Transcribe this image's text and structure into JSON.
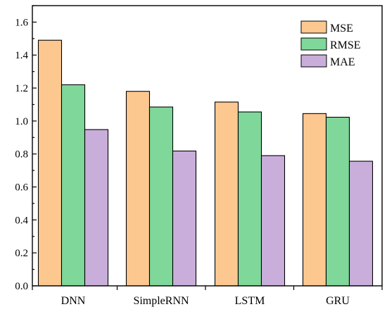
{
  "chart_data": {
    "type": "bar",
    "title": "",
    "xlabel": "",
    "ylabel": "",
    "categories": [
      "DNN",
      "SimpleRNN",
      "LSTM",
      "GRU"
    ],
    "series": [
      {
        "name": "MSE",
        "color": "#FDC890",
        "values": [
          1.49,
          1.18,
          1.115,
          1.045
        ]
      },
      {
        "name": "RMSE",
        "color": "#7FD89A",
        "values": [
          1.22,
          1.085,
          1.055,
          1.023
        ]
      },
      {
        "name": "MAE",
        "color": "#C9AEDB",
        "values": [
          0.948,
          0.818,
          0.79,
          0.756
        ]
      }
    ],
    "ylim": [
      0,
      1.7
    ],
    "yticks": [
      "0.0",
      "0.2",
      "0.4",
      "0.6",
      "0.8",
      "1.0",
      "1.2",
      "1.4",
      "1.6"
    ],
    "grid": false,
    "legend_position": "top-right"
  }
}
